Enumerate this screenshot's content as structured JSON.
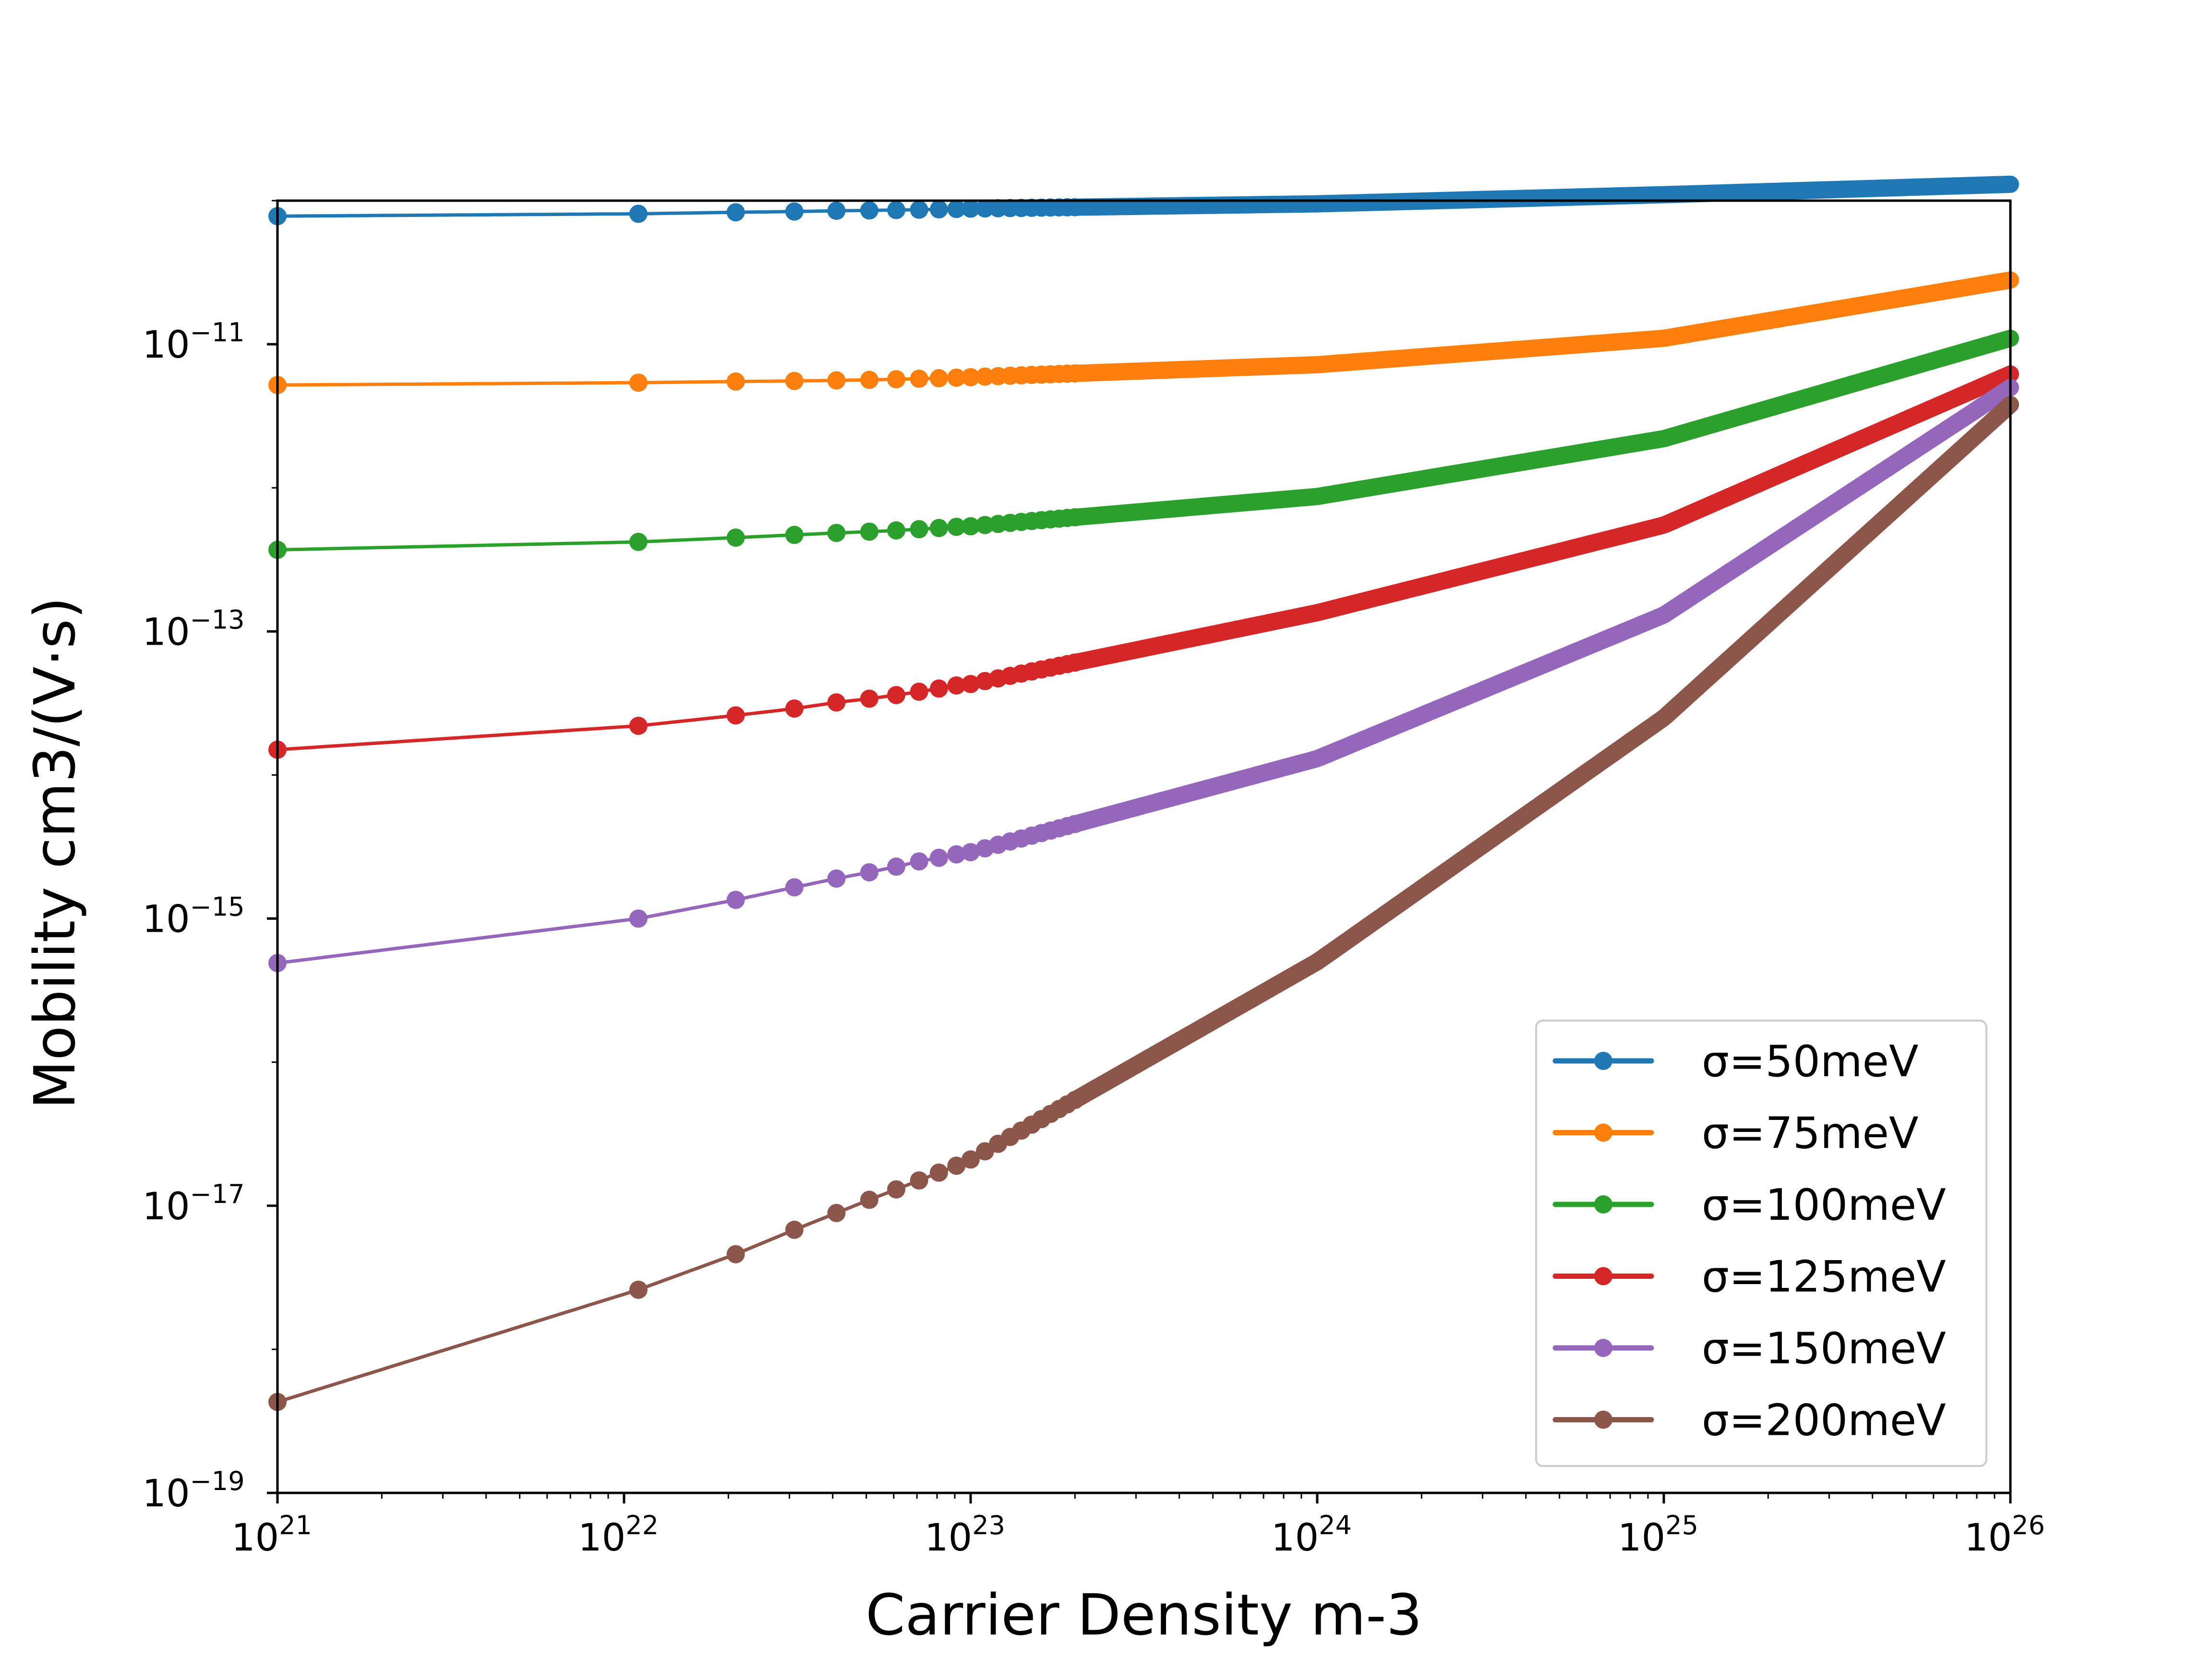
{
  "chart_data": {
    "type": "line",
    "title": "",
    "xlabel": "Carrier Density m-3",
    "ylabel": "Mobility cm3/(V·s)",
    "xscale": "log",
    "yscale": "log",
    "xlim": [
      1e+21,
      1e+26
    ],
    "ylim": [
      1e-19,
      1e-10
    ],
    "x_ticks": [
      {
        "value": 1e+21,
        "base": "10",
        "exp": "21"
      },
      {
        "value": 1e+22,
        "base": "10",
        "exp": "22"
      },
      {
        "value": 1e+23,
        "base": "10",
        "exp": "23"
      },
      {
        "value": 1e+24,
        "base": "10",
        "exp": "24"
      },
      {
        "value": 1e+25,
        "base": "10",
        "exp": "25"
      },
      {
        "value": 1e+26,
        "base": "10",
        "exp": "26"
      }
    ],
    "y_ticks": [
      {
        "value": 1e-19,
        "base": "10",
        "exp": "−19"
      },
      {
        "value": 1e-17,
        "base": "10",
        "exp": "−17"
      },
      {
        "value": 1e-15,
        "base": "10",
        "exp": "−15"
      },
      {
        "value": 1e-13,
        "base": "10",
        "exp": "−13"
      },
      {
        "value": 1e-11,
        "base": "10",
        "exp": "−11"
      }
    ],
    "grid": false,
    "legend_position": "lower-right",
    "x": [
      1e+21,
      1.1e+22,
      2.1e+22,
      3.1e+22,
      4.1e+22,
      5.1e+22,
      6.1e+22,
      7.1e+22,
      8.1e+22,
      9.1e+22,
      1e+23,
      1e+24,
      1e+25,
      1e+26
    ],
    "series": [
      {
        "name": "σ=50meV",
        "color": "#1f77b4",
        "values": [
          7.8e-11,
          8.1e-11,
          8.3e-11,
          8.4e-11,
          8.5e-11,
          8.55e-11,
          8.6e-11,
          8.65e-11,
          8.7e-11,
          8.75e-11,
          8.8e-11,
          9.5e-11,
          1.1e-10,
          1.3e-10
        ]
      },
      {
        "name": "σ=75meV",
        "color": "#ff7f0e",
        "values": [
          5.2e-12,
          5.4e-12,
          5.5e-12,
          5.55e-12,
          5.6e-12,
          5.65e-12,
          5.7e-12,
          5.75e-12,
          5.8e-12,
          5.85e-12,
          5.9e-12,
          7.2e-12,
          1.1e-11,
          2.8e-11
        ]
      },
      {
        "name": "σ=100meV",
        "color": "#2ca02c",
        "values": [
          3.7e-13,
          4.2e-13,
          4.5e-13,
          4.7e-13,
          4.85e-13,
          4.95e-13,
          5.05e-13,
          5.15e-13,
          5.25e-13,
          5.35e-13,
          5.4e-13,
          8.7e-13,
          2.2e-12,
          1.1e-11
        ]
      },
      {
        "name": "σ=125meV",
        "color": "#d62728",
        "values": [
          1.5e-14,
          2.2e-14,
          2.6e-14,
          2.9e-14,
          3.2e-14,
          3.4e-14,
          3.6e-14,
          3.8e-14,
          4e-14,
          4.2e-14,
          4.3e-14,
          1.35e-13,
          5.5e-13,
          6.2e-12
        ]
      },
      {
        "name": "σ=150meV",
        "color": "#9467bd",
        "values": [
          4.9e-16,
          1e-15,
          1.35e-15,
          1.65e-15,
          1.9e-15,
          2.1e-15,
          2.3e-15,
          2.5e-15,
          2.65e-15,
          2.8e-15,
          2.9e-15,
          1.3e-14,
          1.3e-13,
          5e-12
        ]
      },
      {
        "name": "σ=200meV",
        "color": "#8c564b",
        "values": [
          4.3e-19,
          2.6e-18,
          4.6e-18,
          6.8e-18,
          8.9e-18,
          1.1e-17,
          1.3e-17,
          1.5e-17,
          1.7e-17,
          1.9e-17,
          2.1e-17,
          5e-16,
          2.5e-14,
          3.8e-12
        ]
      }
    ]
  }
}
